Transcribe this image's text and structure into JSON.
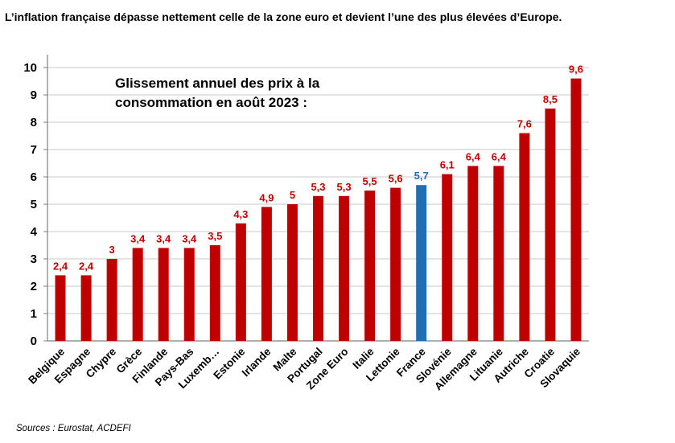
{
  "header": {
    "title": "L’inflation française dépasse nettement celle de la zone euro et devient l’une des plus élevées d’Europe."
  },
  "footer": {
    "source": "Sources : Eurostat, ACDEFI"
  },
  "colors": {
    "bar_default": "#c00000",
    "bar_highlight": "#1f6fb4",
    "grid": "#c8c8c8",
    "axis": "#7f7f7f"
  },
  "chart_data": {
    "type": "bar",
    "annotation": [
      "Glissement annuel des  prix  à la",
      "consommation en août 2023 :"
    ],
    "categories": [
      "Belgique",
      "Espagne",
      "Chypre",
      "Grèce",
      "Finlande",
      "Pays-Bas",
      "Luxemb…",
      "Estonie",
      "Irlande",
      "Malte",
      "Portugal",
      "Zone Euro",
      "Italie",
      "Lettonie",
      "France",
      "Slovénie",
      "Allemagne",
      "Lituanie",
      "Autriche",
      "Croatie",
      "Slovaquie"
    ],
    "values": [
      2.4,
      2.4,
      3,
      3.4,
      3.4,
      3.4,
      3.5,
      4.3,
      4.9,
      5,
      5.3,
      5.3,
      5.5,
      5.6,
      5.7,
      6.1,
      6.4,
      6.4,
      7.6,
      8.5,
      9.6
    ],
    "value_labels": [
      "2,4",
      "2,4",
      "3",
      "3,4",
      "3,4",
      "3,4",
      "3,5",
      "4,3",
      "4,9",
      "5",
      "5,3",
      "5,3",
      "5,5",
      "5,6",
      "5,7",
      "6,1",
      "6,4",
      "6,4",
      "7,6",
      "8,5",
      "9,6"
    ],
    "highlight": "France",
    "ylim": [
      0,
      10
    ],
    "yticks": [
      0,
      1,
      2,
      3,
      4,
      5,
      6,
      7,
      8,
      9,
      10
    ],
    "grid": true,
    "legend": "none"
  }
}
